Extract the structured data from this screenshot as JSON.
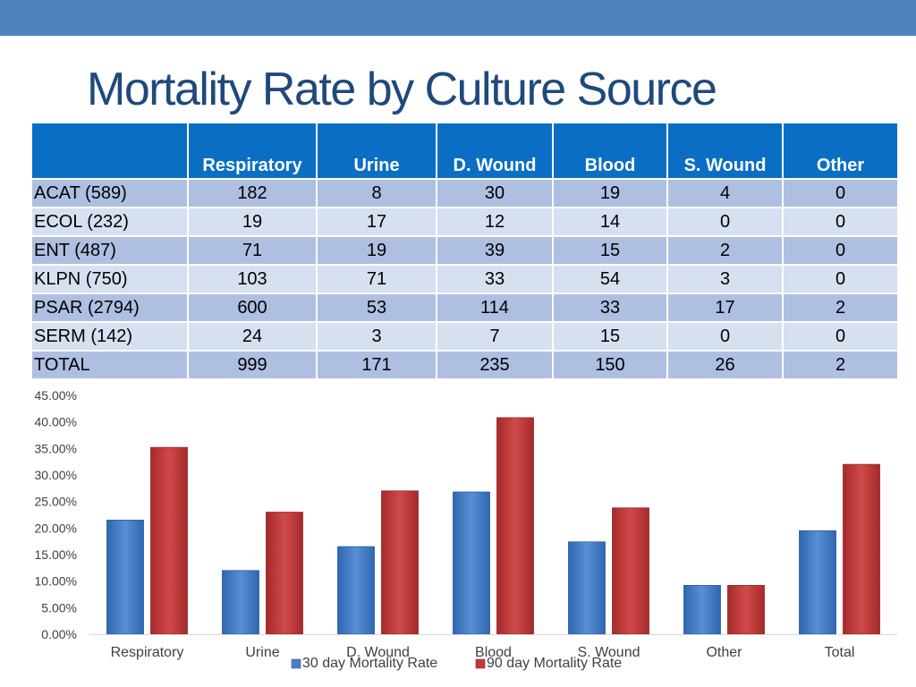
{
  "title": "Mortality Rate by Culture Source",
  "table": {
    "headers": [
      "",
      "Respiratory",
      "Urine",
      "D. Wound",
      "Blood",
      "S. Wound",
      "Other"
    ],
    "rows": [
      {
        "label": "ACAT (589)",
        "values": [
          "182",
          "8",
          "30",
          "19",
          "4",
          "0"
        ]
      },
      {
        "label": "ECOL (232)",
        "values": [
          "19",
          "17",
          "12",
          "14",
          "0",
          "0"
        ]
      },
      {
        "label": "ENT (487)",
        "values": [
          "71",
          "19",
          "39",
          "15",
          "2",
          "0"
        ]
      },
      {
        "label": "KLPN (750)",
        "values": [
          "103",
          "71",
          "33",
          "54",
          "3",
          "0"
        ]
      },
      {
        "label": "PSAR (2794)",
        "values": [
          "600",
          "53",
          "114",
          "33",
          "17",
          "2"
        ]
      },
      {
        "label": "SERM (142)",
        "values": [
          "24",
          "3",
          "7",
          "15",
          "0",
          "0"
        ]
      },
      {
        "label": "TOTAL",
        "values": [
          "999",
          "171",
          "235",
          "150",
          "26",
          "2"
        ]
      }
    ]
  },
  "chart_data": {
    "type": "bar",
    "title": "",
    "xlabel": "",
    "ylabel": "",
    "categories": [
      "Respiratory",
      "Urine",
      "D. Wound",
      "Blood",
      "S. Wound",
      "Other",
      "Total"
    ],
    "series": [
      {
        "name": "30 day Mortality Rate",
        "color": "#4a7fc7",
        "values": [
          21.5,
          12.0,
          16.5,
          26.8,
          17.4,
          9.2,
          19.5
        ]
      },
      {
        "name": "90 day Mortality Rate",
        "color": "#c0393a",
        "values": [
          35.2,
          23.0,
          27.0,
          40.8,
          23.8,
          9.2,
          32.0
        ]
      }
    ],
    "ylim": [
      0,
      45
    ],
    "yticks": [
      "0.00%",
      "5.00%",
      "10.00%",
      "15.00%",
      "20.00%",
      "25.00%",
      "30.00%",
      "35.00%",
      "40.00%",
      "45.00%"
    ],
    "legend_position": "bottom",
    "grid": false
  }
}
